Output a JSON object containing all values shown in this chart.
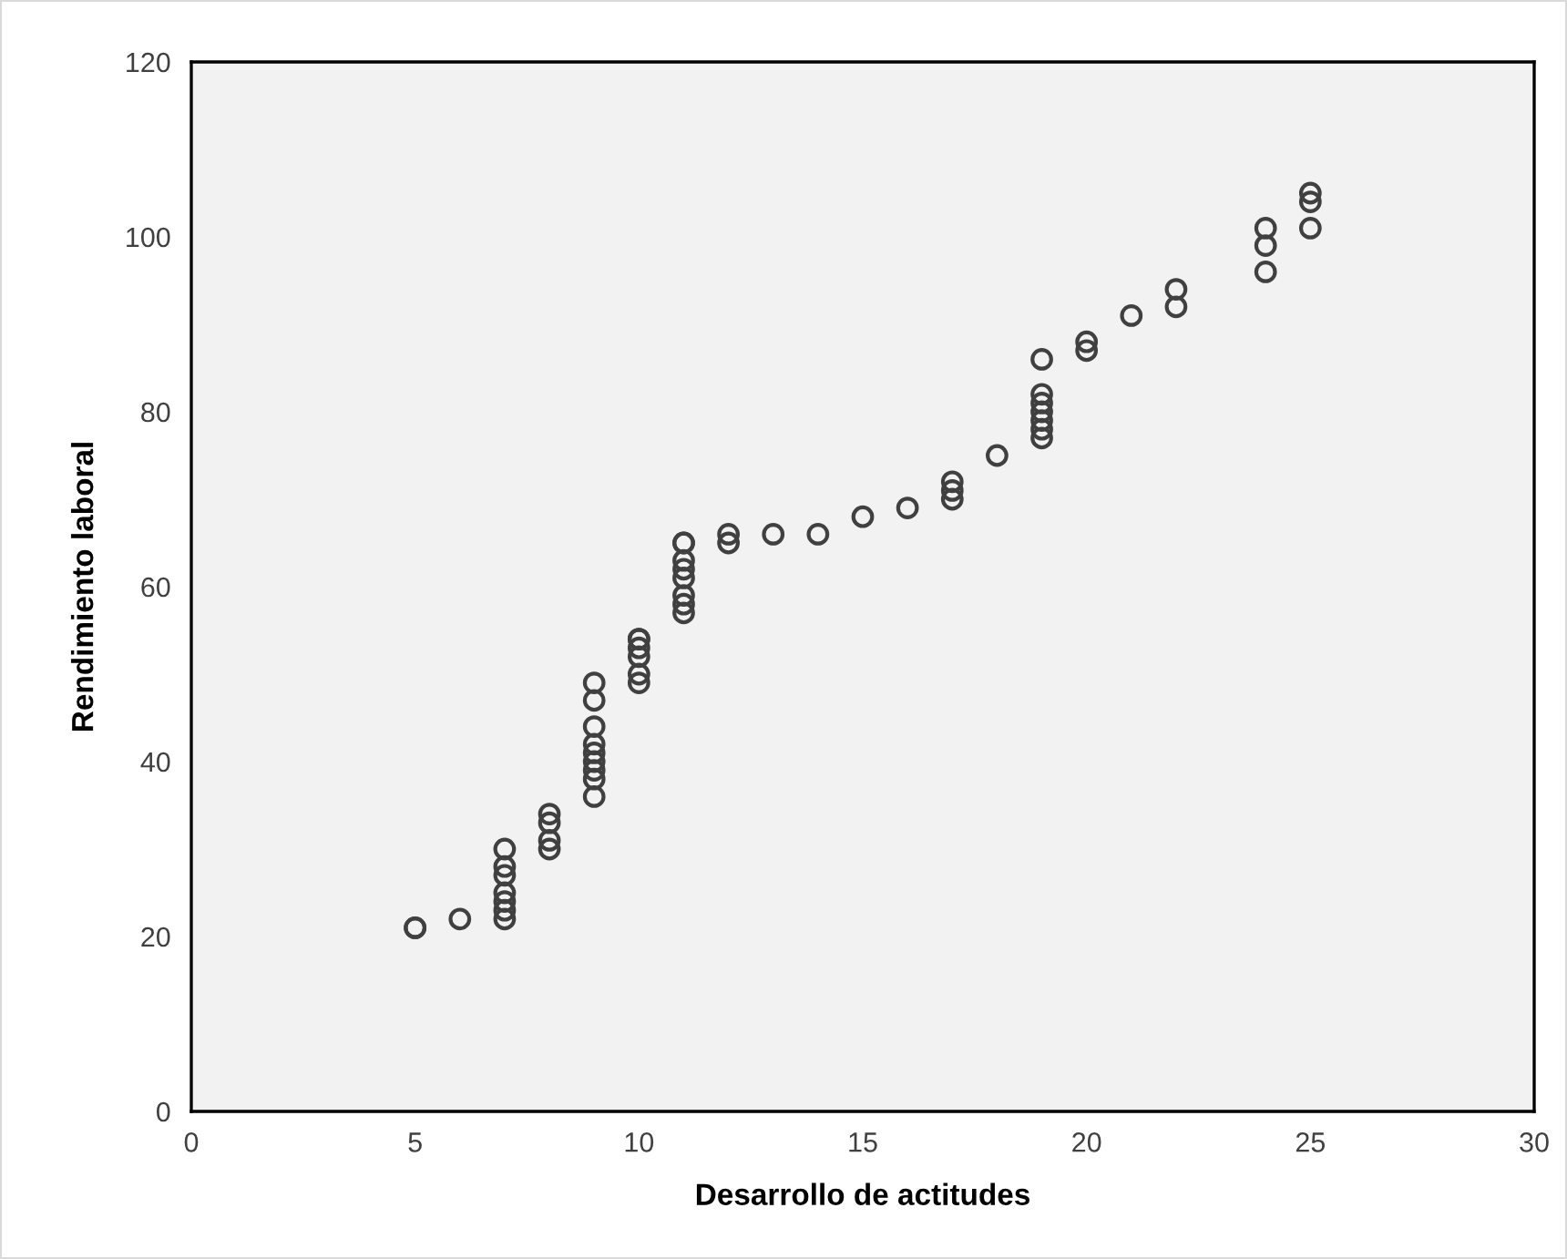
{
  "chart_data": {
    "type": "scatter",
    "xlabel": "Desarrollo de actitudes",
    "ylabel": "Rendimiento laboral",
    "xlim": [
      0,
      30
    ],
    "xticks": [
      0,
      5,
      10,
      15,
      20,
      25,
      30
    ],
    "ylim": [
      0,
      120
    ],
    "yticks": [
      0,
      20,
      40,
      60,
      80,
      100,
      120
    ],
    "grid": false,
    "marker": "circle",
    "legend": false,
    "series": [
      {
        "color": "#404040",
        "x": [
          5,
          5,
          6,
          7,
          7,
          7,
          7,
          7,
          7,
          7,
          8,
          8,
          8,
          8,
          9,
          9,
          9,
          9,
          9,
          9,
          9,
          9,
          9,
          10,
          10,
          10,
          10,
          10,
          10,
          11,
          11,
          11,
          11,
          11,
          11,
          11,
          11,
          12,
          12,
          13,
          14,
          15,
          16,
          17,
          17,
          17,
          18,
          19,
          19,
          19,
          19,
          19,
          19,
          19,
          20,
          20,
          21,
          22,
          22,
          24,
          24,
          24,
          25,
          25,
          25
        ],
        "values": [
          21,
          21,
          22,
          22,
          23,
          24,
          25,
          27,
          28,
          30,
          30,
          31,
          33,
          34,
          36,
          38,
          39,
          40,
          41,
          42,
          44,
          47,
          49,
          49,
          50,
          52,
          53,
          54,
          54,
          57,
          58,
          59,
          61,
          62,
          63,
          65,
          65,
          65,
          66,
          66,
          66,
          68,
          69,
          70,
          71,
          72,
          75,
          77,
          78,
          79,
          80,
          81,
          82,
          86,
          87,
          88,
          91,
          92,
          94,
          96,
          99,
          101,
          101,
          104,
          105
        ]
      }
    ]
  }
}
